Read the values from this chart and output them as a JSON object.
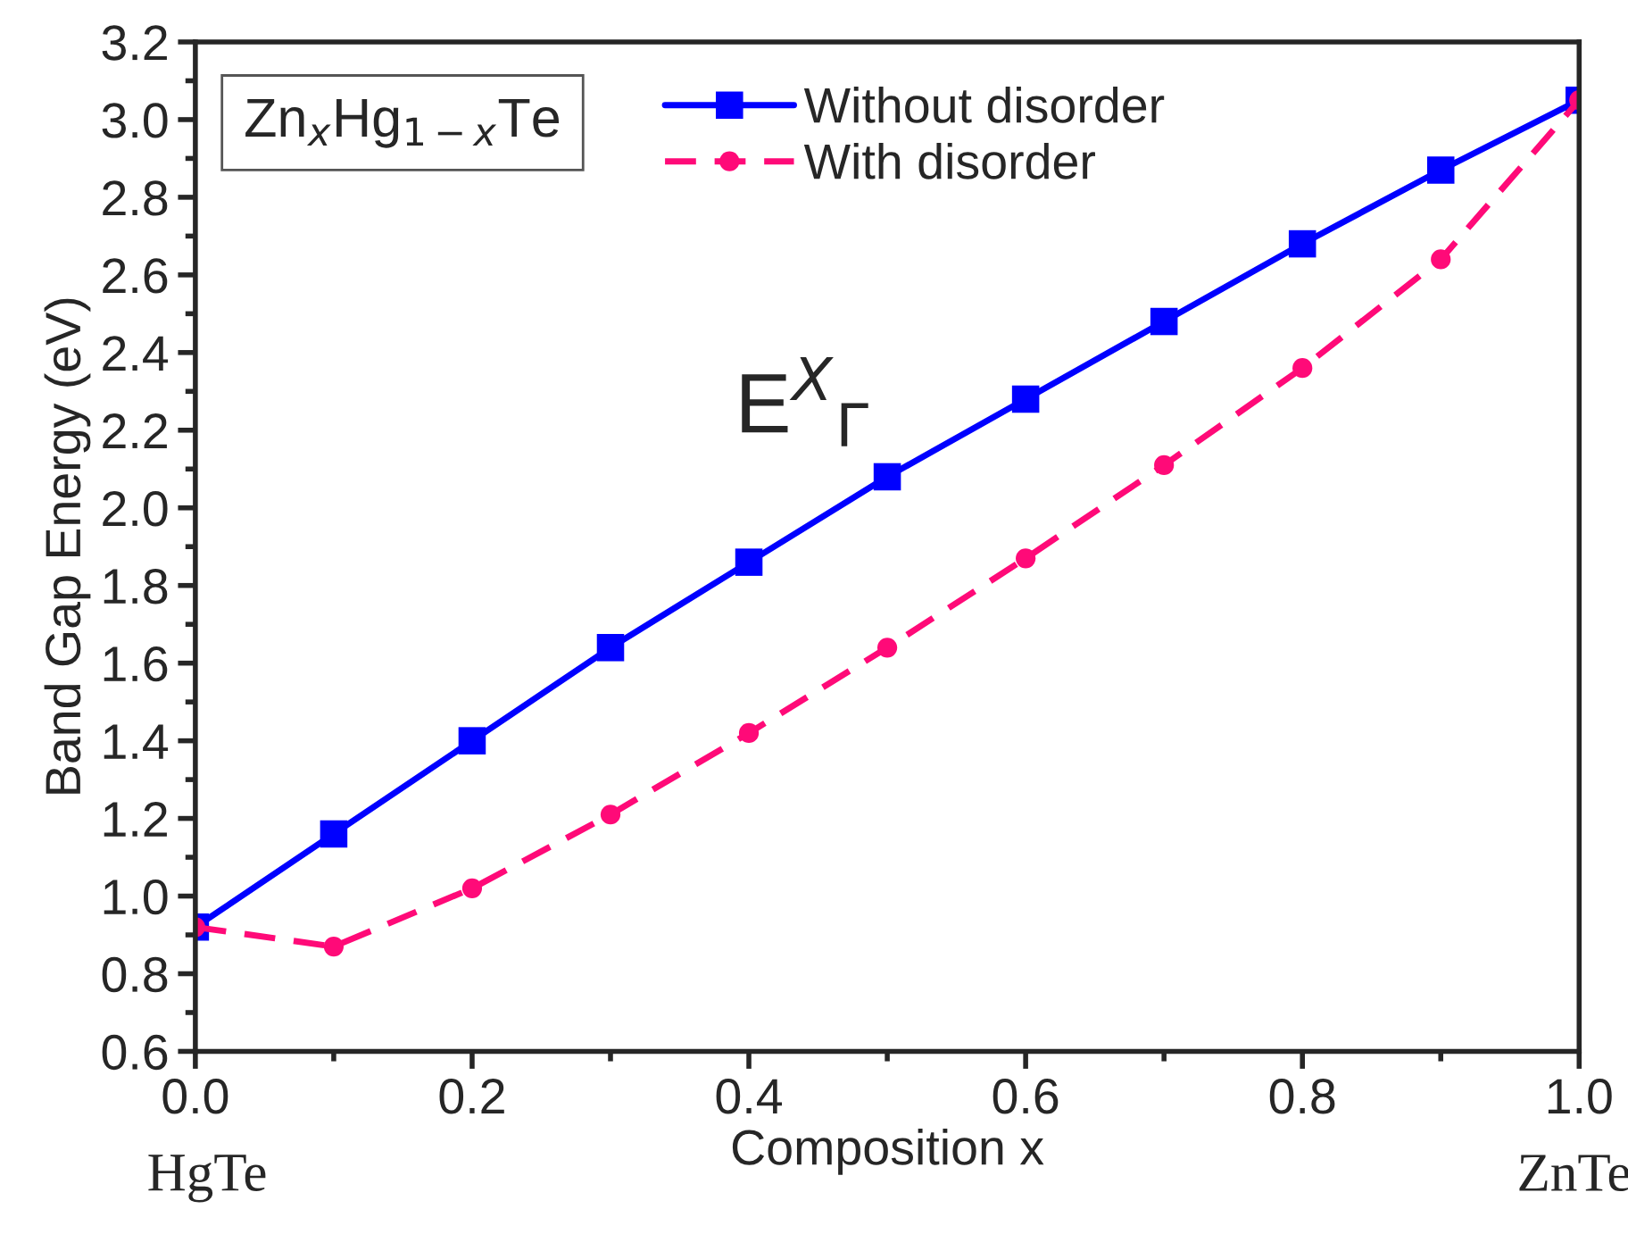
{
  "chart_data": {
    "type": "line",
    "title": "Zn$_{x}$Hg$_{1−x}$Te",
    "xlabel": "Composition x",
    "ylabel": "Band Gap Energy (eV)",
    "x": [
      0.0,
      0.1,
      0.2,
      0.3,
      0.4,
      0.5,
      0.6,
      0.7,
      0.8,
      0.9,
      1.0
    ],
    "series": [
      {
        "name": "Without disorder",
        "color": "#0000ff",
        "marker": "square",
        "line_style": "solid",
        "values": [
          0.92,
          1.16,
          1.4,
          1.64,
          1.86,
          2.08,
          2.28,
          2.48,
          2.68,
          2.87,
          3.05
        ]
      },
      {
        "name": "With disorder",
        "color": "#ff0a78",
        "marker": "circle",
        "line_style": "dashed",
        "values": [
          0.92,
          0.87,
          1.02,
          1.21,
          1.42,
          1.64,
          1.87,
          2.11,
          2.36,
          2.64,
          3.05
        ]
      }
    ],
    "annotations": [
      "E$^{X}$$_{Γ}$",
      "HgTe",
      "ZnTe"
    ],
    "xlim": [
      0.0,
      1.0
    ],
    "xticks": [
      {
        "value": 0.0,
        "label": "0.0"
      },
      0.2,
      0.4,
      0.6,
      0.8,
      {
        "value": 1.0,
        "label": "1.0"
      }
    ],
    "ylim": [
      0.6,
      3.2
    ],
    "yticks": [
      0.6,
      0.8,
      {
        "value": 1.0,
        "label": "1.0"
      },
      1.2,
      1.4,
      1.6,
      1.8,
      {
        "value": 2.0,
        "label": "2.0"
      },
      2.2,
      2.4,
      2.6,
      2.8,
      {
        "value": 3.0,
        "label": "3.0"
      },
      3.2
    ],
    "grid": false,
    "legend": "top"
  }
}
